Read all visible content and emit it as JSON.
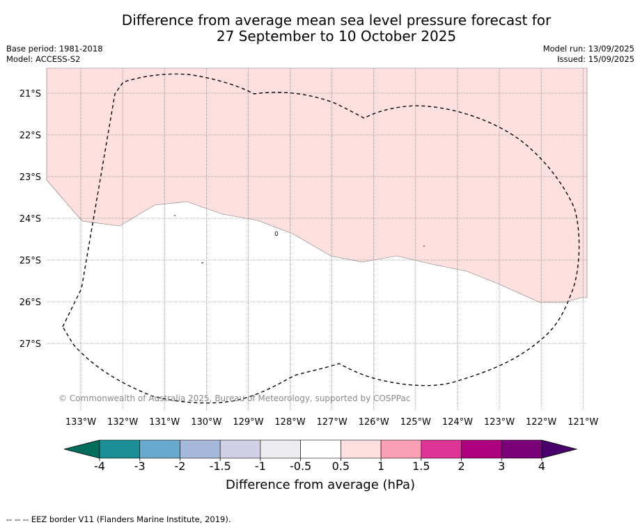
{
  "title": {
    "line1": "Difference from average mean sea level pressure forecast for",
    "line2": "27 September to 10 October 2025"
  },
  "meta_left": {
    "base_period": "Base period: 1981-2018",
    "model": "Model: ACCESS-S2"
  },
  "meta_right": {
    "model_run": "Model run: 13/09/2025",
    "issued": "Issued: 15/09/2025"
  },
  "map": {
    "lat_labels": [
      "21°S",
      "22°S",
      "23°S",
      "24°S",
      "25°S",
      "26°S",
      "27°S"
    ],
    "lon_labels": [
      "133°W",
      "132°W",
      "131°W",
      "130°W",
      "129°W",
      "128°W",
      "127°W",
      "126°W",
      "125°W",
      "124°W",
      "123°W",
      "122°W",
      "121°W"
    ],
    "copyright": "© Commonwealth of Australia 2025, Bureau of Meteorology, supported by COSPPac",
    "anomaly_region_class": "0.5 to 1",
    "anomaly_color": "#fde0df",
    "eez_line_style": "dashed"
  },
  "colorbar": {
    "tick_labels": [
      "-4",
      "-3",
      "-2",
      "-1.5",
      "-1",
      "-0.5",
      "0.5",
      "1",
      "1.5",
      "2",
      "3",
      "4"
    ],
    "colors": [
      "#1a8f96",
      "#67a9cf",
      "#a6b9db",
      "#d0d1e6",
      "#ececf0",
      "#ffffff",
      "#fde0df",
      "#fa9fb5",
      "#dd3497",
      "#ae017e",
      "#7a0177"
    ],
    "under_color": "#016c59",
    "over_color": "#49006a",
    "label": "Difference from average (hPa)"
  },
  "footnote": "--  --  -- EEZ border V11 (Flanders Marine Institute, 2019)."
}
